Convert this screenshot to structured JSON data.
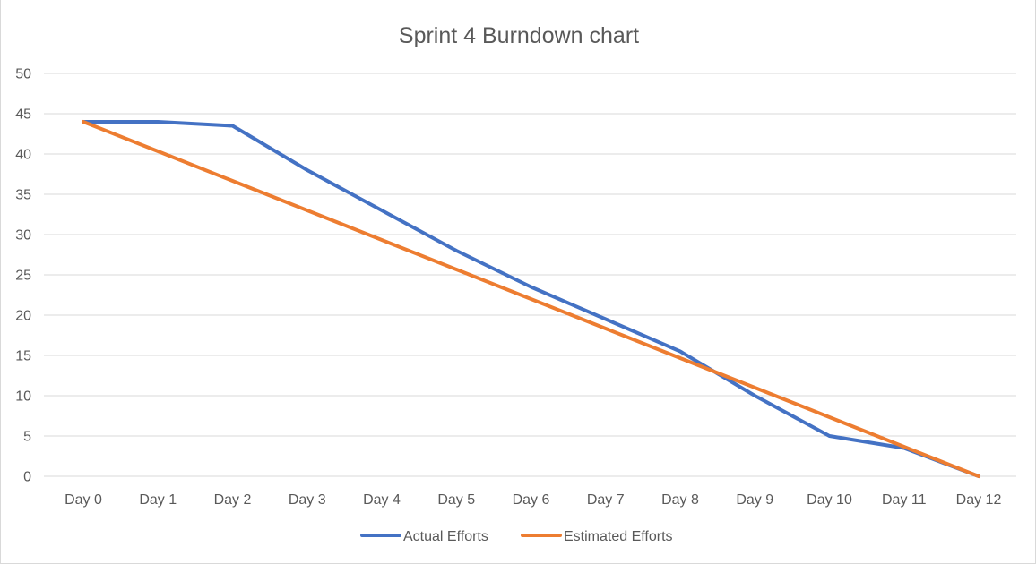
{
  "chart_data": {
    "type": "line",
    "title": "Sprint 4 Burndown chart",
    "xlabel": "",
    "ylabel": "",
    "categories": [
      "Day 0",
      "Day 1",
      "Day 2",
      "Day 3",
      "Day 4",
      "Day 5",
      "Day 6",
      "Day 7",
      "Day 8",
      "Day 9",
      "Day 10",
      "Day 11",
      "Day 12"
    ],
    "ylim": [
      0,
      50
    ],
    "yticks": [
      "0",
      "5",
      "10",
      "15",
      "20",
      "25",
      "30",
      "35",
      "40",
      "45",
      "50"
    ],
    "grid": true,
    "legend_position": "bottom",
    "series": [
      {
        "name": "Actual Efforts",
        "color": "#4472C4",
        "values": [
          44,
          44,
          43.5,
          38,
          33,
          28,
          23.5,
          19.5,
          15.5,
          10,
          5,
          3.5,
          0
        ]
      },
      {
        "name": "Estimated Efforts",
        "color": "#ED7D31",
        "values": [
          44,
          40.33,
          36.67,
          33,
          29.33,
          25.67,
          22,
          18.33,
          14.67,
          11,
          7.33,
          3.67,
          0
        ]
      }
    ]
  }
}
